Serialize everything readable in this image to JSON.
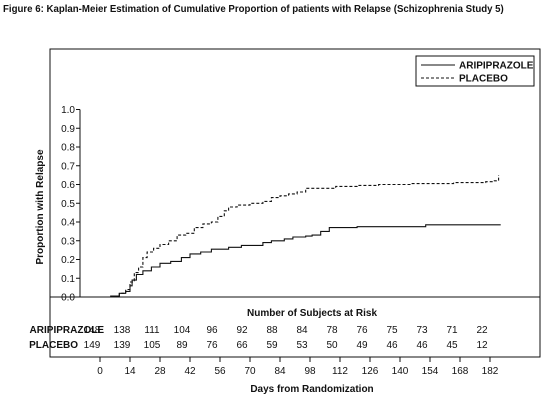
{
  "figure_title": "Figure 6: Kaplan-Meier Estimation of Cumulative Proportion of patients with Relapse (Schizophrenia Study 5)",
  "colors": {
    "line": "#111111",
    "background": "#ffffff"
  },
  "chart_data": {
    "type": "line",
    "title": "",
    "xlabel": "Days from Randomization",
    "ylabel": "Proportion with Relapse",
    "xlim": [
      0,
      188
    ],
    "ylim": [
      0,
      1.0
    ],
    "x_ticks": [
      0,
      14,
      28,
      42,
      56,
      70,
      84,
      98,
      112,
      126,
      140,
      154,
      168,
      182
    ],
    "y_ticks": [
      "0.0",
      "0.1",
      "0.2",
      "0.3",
      "0.4",
      "0.5",
      "0.6",
      "0.7",
      "0.8",
      "0.9",
      "1.0"
    ],
    "legend_position": "top-right",
    "grid": false,
    "series": [
      {
        "name": "ARIPIPRAZOLE",
        "style": "solid",
        "points": [
          [
            0,
            0
          ],
          [
            5,
            0.005
          ],
          [
            9,
            0.02
          ],
          [
            12,
            0.03
          ],
          [
            14,
            0.06
          ],
          [
            15,
            0.09
          ],
          [
            17,
            0.12
          ],
          [
            20,
            0.14
          ],
          [
            24,
            0.16
          ],
          [
            28,
            0.18
          ],
          [
            33,
            0.19
          ],
          [
            38,
            0.21
          ],
          [
            42,
            0.23
          ],
          [
            47,
            0.24
          ],
          [
            52,
            0.255
          ],
          [
            60,
            0.265
          ],
          [
            66,
            0.275
          ],
          [
            76,
            0.29
          ],
          [
            80,
            0.3
          ],
          [
            86,
            0.31
          ],
          [
            90,
            0.32
          ],
          [
            96,
            0.325
          ],
          [
            99,
            0.33
          ],
          [
            103,
            0.35
          ],
          [
            107,
            0.37
          ],
          [
            120,
            0.375
          ],
          [
            152,
            0.385
          ],
          [
            187,
            0.385
          ]
        ]
      },
      {
        "name": "PLACEBO",
        "style": "dashed",
        "points": [
          [
            0,
            0
          ],
          [
            6,
            0.005
          ],
          [
            9,
            0.02
          ],
          [
            12,
            0.04
          ],
          [
            14,
            0.08
          ],
          [
            16,
            0.13
          ],
          [
            18,
            0.16
          ],
          [
            20,
            0.21
          ],
          [
            22,
            0.24
          ],
          [
            25,
            0.26
          ],
          [
            28,
            0.28
          ],
          [
            32,
            0.3
          ],
          [
            36,
            0.33
          ],
          [
            40,
            0.34
          ],
          [
            44,
            0.37
          ],
          [
            48,
            0.39
          ],
          [
            52,
            0.4
          ],
          [
            55,
            0.43
          ],
          [
            58,
            0.46
          ],
          [
            60,
            0.48
          ],
          [
            64,
            0.49
          ],
          [
            70,
            0.5
          ],
          [
            76,
            0.51
          ],
          [
            80,
            0.53
          ],
          [
            84,
            0.54
          ],
          [
            88,
            0.55
          ],
          [
            92,
            0.56
          ],
          [
            96,
            0.58
          ],
          [
            110,
            0.59
          ],
          [
            120,
            0.595
          ],
          [
            130,
            0.6
          ],
          [
            145,
            0.605
          ],
          [
            165,
            0.61
          ],
          [
            180,
            0.615
          ],
          [
            184,
            0.62
          ],
          [
            186,
            0.65
          ]
        ]
      }
    ],
    "risk_table": {
      "header": "Number of Subjects at Risk",
      "rows": [
        {
          "label": "ARIPIPRAZOLE",
          "values": [
            "148",
            "138",
            "111",
            "104",
            "96",
            "92",
            "88",
            "84",
            "78",
            "76",
            "75",
            "73",
            "71",
            "22"
          ]
        },
        {
          "label": "PLACEBO",
          "values": [
            "149",
            "139",
            "105",
            "89",
            "76",
            "66",
            "59",
            "53",
            "50",
            "49",
            "46",
            "46",
            "45",
            "12"
          ]
        }
      ]
    }
  }
}
